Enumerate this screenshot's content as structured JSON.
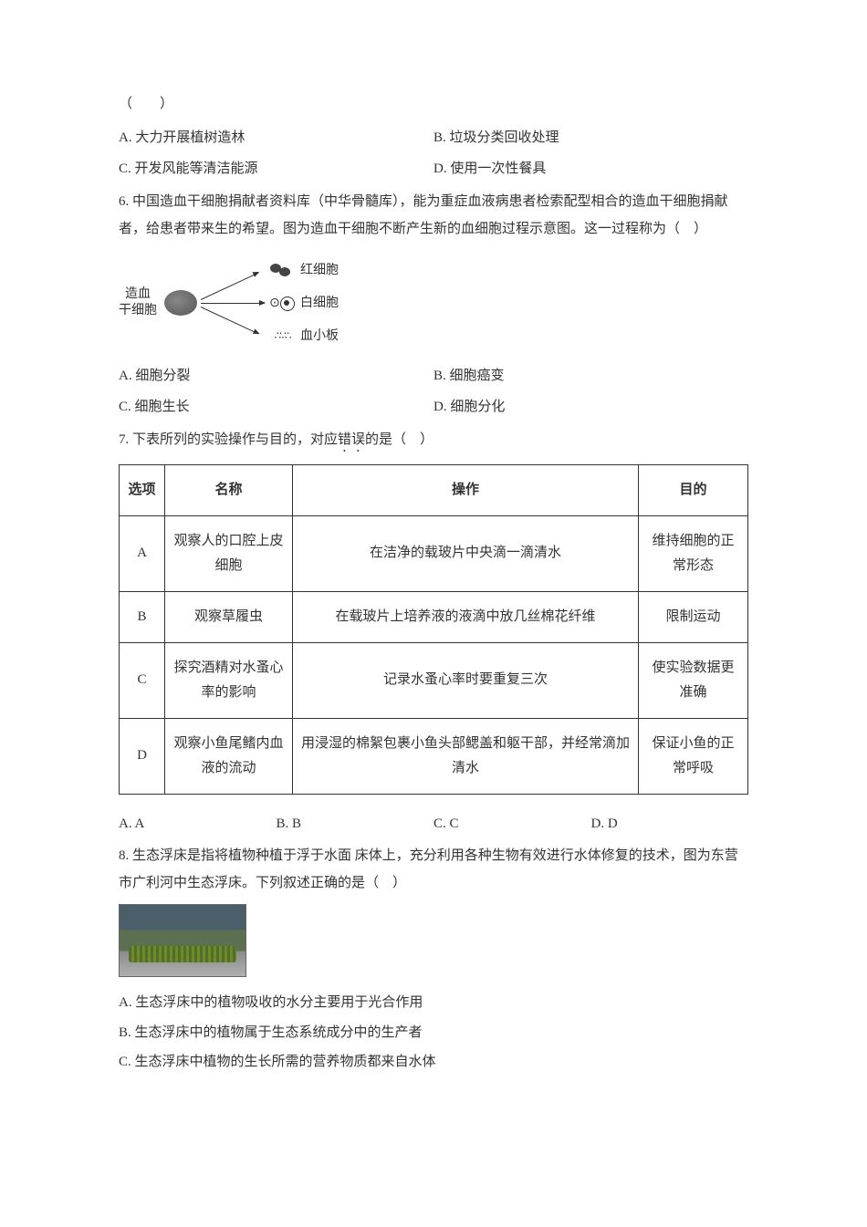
{
  "q5": {
    "bracket": "（　　）",
    "options": {
      "A": "A. 大力开展植树造林",
      "B": "B. 垃圾分类回收处理",
      "C": "C. 开发风能等清洁能源",
      "D": "D. 使用一次性餐具"
    }
  },
  "q6": {
    "text": "6. 中国造血干细胞捐献者资料库（中华骨髓库），能为重症血液病患者检索配型相合的造血干细胞捐献者，给患者带来生的希望。图为造血干细胞不断产生新的血细胞过程示意图。这一过程称为（　）",
    "diagram": {
      "source": "造血\n干细胞",
      "targets": [
        "红细胞",
        "白细胞",
        "血小板"
      ]
    },
    "options": {
      "A": "A. 细胞分裂",
      "B": "B. 细胞癌变",
      "C": "C. 细胞生长",
      "D": "D. 细胞分化"
    }
  },
  "q7": {
    "text_pre": "7. 下表所列的实验操作与目的，对应",
    "text_em": "错误",
    "text_post": "的是（　）",
    "headers": [
      "选项",
      "名称",
      "操作",
      "目的"
    ],
    "rows": [
      {
        "opt": "A",
        "name": "观察人的口腔上皮细胞",
        "operation": "在洁净的载玻片中央滴一滴清水",
        "purpose": "维持细胞的正常形态"
      },
      {
        "opt": "B",
        "name": "观察草履虫",
        "operation": "在载玻片上培养液的液滴中放几丝棉花纤维",
        "purpose": "限制运动"
      },
      {
        "opt": "C",
        "name": "探究酒精对水蚤心率的影响",
        "operation": "记录水蚤心率时要重复三次",
        "purpose": "使实验数据更准确"
      },
      {
        "opt": "D",
        "name": "观察小鱼尾鳍内血液的流动",
        "operation": "用浸湿的棉絮包裹小鱼头部鳃盖和躯干部，并经常滴加清水",
        "purpose": "保证小鱼的正常呼吸"
      }
    ],
    "options": {
      "A": "A. A",
      "B": "B. B",
      "C": "C. C",
      "D": "D. D"
    }
  },
  "q8": {
    "text": "8. 生态浮床是指将植物种植于浮于水面 床体上，充分利用各种生物有效进行水体修复的技术，图为东营市广利河中生态浮床。下列叙述正确的是（　）",
    "options": {
      "A": "A. 生态浮床中的植物吸收的水分主要用于光合作用",
      "B": "B. 生态浮床中的植物属于生态系统成分中的生产者",
      "C": "C. 生态浮床中植物的生长所需的营养物质都来自水体"
    }
  },
  "colors": {
    "text": "#333333",
    "border": "#333333",
    "background": "#ffffff"
  },
  "typography": {
    "base_font_size": 15,
    "line_height": 1.9,
    "font_family": "SimSun"
  }
}
